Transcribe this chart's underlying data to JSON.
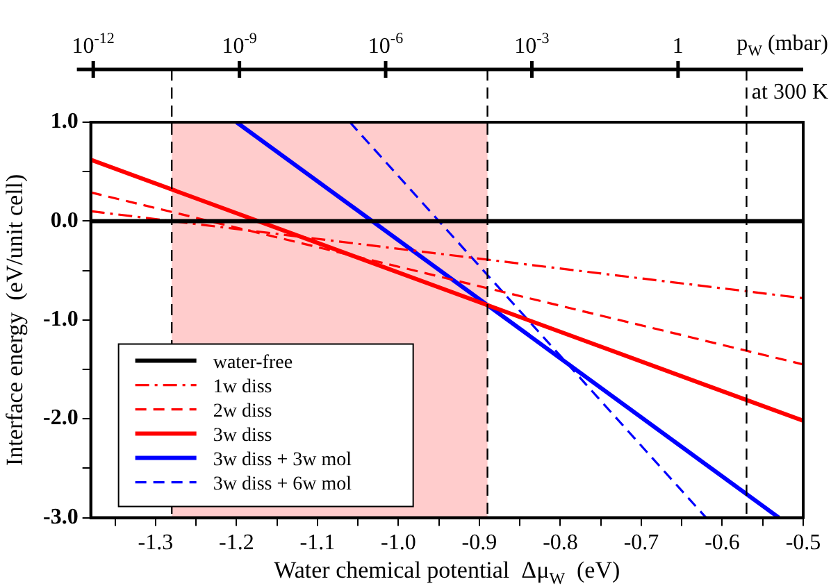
{
  "chart_data": {
    "type": "line",
    "xlabel": "Water chemical potential  Δμ$_{W}$  (eV)",
    "ylabel": "Interface energy  (eV/unit cell)",
    "x2label": "p$_{W}$ (mbar)",
    "annotations": [
      "at 300 K"
    ],
    "xlim": [
      -1.38,
      -0.5
    ],
    "xticks": [
      {
        "value": -1.35,
        "label": null
      },
      -1.3,
      {
        "value": -1.25,
        "label": null
      },
      -1.2,
      {
        "value": -1.15,
        "label": null
      },
      -1.1,
      {
        "value": -1.05,
        "label": null
      },
      {
        "value": -1,
        "label": "-1.0"
      },
      {
        "value": -0.95,
        "label": null
      },
      -0.9,
      {
        "value": -0.85,
        "label": null
      },
      -0.8,
      {
        "value": -0.75,
        "label": null
      },
      -0.7,
      {
        "value": -0.65,
        "label": null
      },
      -0.6,
      {
        "value": -0.55,
        "label": null
      },
      -0.5
    ],
    "ylim": [
      -3,
      1
    ],
    "yticks": [
      {
        "value": -3,
        "label": "-3.0"
      },
      {
        "value": -2.5,
        "label": null
      },
      {
        "value": -2,
        "label": "-2.0"
      },
      {
        "value": -1.5,
        "label": null
      },
      {
        "value": -1,
        "label": "-1.0"
      },
      {
        "value": -0.5,
        "label": null
      },
      {
        "value": 0,
        "label": "0.0"
      },
      {
        "value": 0.5,
        "label": null
      },
      {
        "value": 1,
        "label": "1.0"
      }
    ],
    "x2lim": [
      8.9e-13,
      370
    ],
    "x2ticks": [
      {
        "value": 1e-12,
        "label": "10$^{-12}$"
      },
      {
        "value": 1e-09,
        "label": "10$^{-9}$"
      },
      {
        "value": 1e-06,
        "label": "10$^{-6}$"
      },
      {
        "value": 0.001,
        "label": "10$^{-3}$"
      },
      1
    ],
    "log": "x2",
    "grid": false,
    "legend": "bottom left",
    "marker": "none",
    "bands": [
      {
        "axis": "x",
        "from": -1.28,
        "to": -0.89,
        "color": "#ffcccc"
      }
    ],
    "ref_lines": [
      {
        "axis": "x",
        "value": -1.28,
        "color": "#000000",
        "line_style": "dashed"
      },
      {
        "axis": "x",
        "value": -0.89,
        "color": "#000000",
        "line_style": "dashed"
      },
      {
        "axis": "x",
        "value": -0.57,
        "color": "#000000",
        "line_style": "dashed"
      }
    ],
    "series": [
      {
        "name": "water-free",
        "type": "line",
        "color": "#000000",
        "line_style": "solid",
        "x": [
          -1.38,
          -0.5
        ],
        "values": [
          0,
          0
        ]
      },
      {
        "name": "1w diss",
        "type": "line",
        "color": "#ff0000",
        "line_style": "dashdot",
        "x": [
          -1.38,
          -0.5
        ],
        "values": [
          0.1,
          -0.78
        ]
      },
      {
        "name": "2w diss",
        "type": "line",
        "color": "#ff0000",
        "line_style": "dashed",
        "x": [
          -1.38,
          -0.5
        ],
        "values": [
          0.29,
          -1.45
        ]
      },
      {
        "name": "3w diss",
        "type": "line",
        "color": "#ff0000",
        "line_style": "solid",
        "x": [
          -1.38,
          -0.5
        ],
        "values": [
          0.62,
          -2.02
        ]
      },
      {
        "name": "3w diss + 3w mol",
        "type": "line",
        "color": "#0000ff",
        "line_style": "solid",
        "x": [
          -1.2,
          -0.53
        ],
        "values": [
          1,
          -3
        ]
      },
      {
        "name": "3w diss + 6w mol",
        "type": "line",
        "color": "#0000ff",
        "line_style": "dashed",
        "x": [
          -1.06,
          -0.62
        ],
        "values": [
          1,
          -3
        ]
      }
    ]
  }
}
